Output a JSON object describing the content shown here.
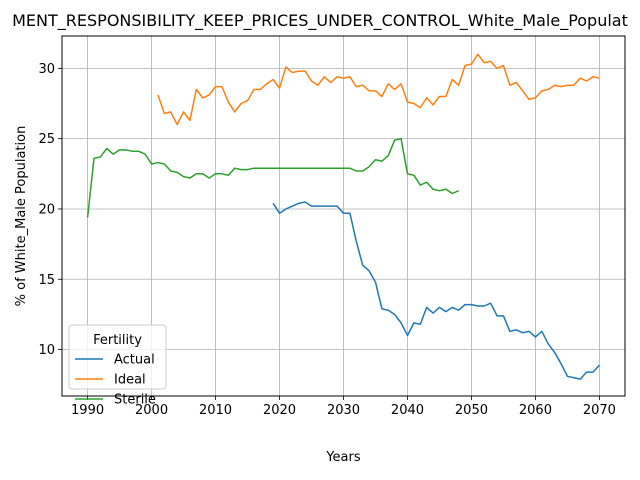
{
  "chart_data": {
    "type": "line",
    "title": "MENT_RESPONSIBILITY_KEEP_PRICES_UNDER_CONTROL_White_Male_Populat",
    "xlabel": "Years",
    "ylabel": "% of White_Male Population",
    "xlim": [
      1986,
      2074
    ],
    "ylim": [
      6.7,
      32.3
    ],
    "xticks": [
      1990,
      2000,
      2010,
      2020,
      2030,
      2040,
      2050,
      2060,
      2070
    ],
    "yticks": [
      10,
      15,
      20,
      25,
      30
    ],
    "grid": true,
    "legend": {
      "title": "Fertility",
      "position": "lower-left"
    },
    "series": [
      {
        "name": "Actual",
        "color": "#1f77b4",
        "x": [
          2019,
          2020,
          2021,
          2022,
          2023,
          2024,
          2025,
          2026,
          2027,
          2028,
          2029,
          2030,
          2031,
          2032,
          2033,
          2034,
          2035,
          2036,
          2037,
          2038,
          2039,
          2040,
          2041,
          2042,
          2043,
          2044,
          2045,
          2046,
          2047,
          2048,
          2049,
          2050,
          2051,
          2052,
          2053,
          2054,
          2055,
          2056,
          2057,
          2058,
          2059,
          2060,
          2061,
          2062,
          2063,
          2064,
          2065,
          2066,
          2067,
          2068,
          2069,
          2070
        ],
        "values": [
          20.4,
          19.7,
          20.0,
          20.2,
          20.4,
          20.5,
          20.2,
          20.2,
          20.2,
          20.2,
          20.2,
          19.7,
          19.7,
          17.7,
          16.0,
          15.6,
          14.8,
          12.9,
          12.8,
          12.5,
          11.9,
          11.0,
          11.9,
          11.8,
          13.0,
          12.6,
          13.0,
          12.7,
          13.0,
          12.8,
          13.2,
          13.2,
          13.1,
          13.1,
          13.3,
          12.4,
          12.4,
          11.3,
          11.4,
          11.2,
          11.3,
          10.9,
          11.3,
          10.4,
          9.8,
          9.0,
          8.1,
          8.0,
          7.9,
          8.4,
          8.4,
          8.9
        ]
      },
      {
        "name": "Ideal",
        "color": "#ff7f0e",
        "x": [
          2001,
          2002,
          2003,
          2004,
          2005,
          2006,
          2007,
          2008,
          2009,
          2010,
          2011,
          2012,
          2013,
          2014,
          2015,
          2016,
          2017,
          2018,
          2019,
          2020,
          2021,
          2022,
          2023,
          2024,
          2025,
          2026,
          2027,
          2028,
          2029,
          2030,
          2031,
          2032,
          2033,
          2034,
          2035,
          2036,
          2037,
          2038,
          2039,
          2040,
          2041,
          2042,
          2043,
          2044,
          2045,
          2046,
          2047,
          2048,
          2049,
          2050,
          2051,
          2052,
          2053,
          2054,
          2055,
          2056,
          2057,
          2058,
          2059,
          2060,
          2061,
          2062,
          2063,
          2064,
          2065,
          2066,
          2067,
          2068,
          2069,
          2070
        ],
        "values": [
          28.1,
          26.8,
          26.9,
          26.0,
          26.9,
          26.3,
          28.5,
          27.9,
          28.1,
          28.7,
          28.7,
          27.6,
          26.9,
          27.5,
          27.7,
          28.5,
          28.5,
          28.9,
          29.2,
          28.6,
          30.1,
          29.7,
          29.8,
          29.8,
          29.1,
          28.8,
          29.4,
          29.0,
          29.4,
          29.3,
          29.4,
          28.7,
          28.8,
          28.4,
          28.4,
          28.0,
          28.9,
          28.5,
          28.9,
          27.6,
          27.5,
          27.2,
          27.9,
          27.4,
          28.0,
          28.0,
          29.2,
          28.8,
          30.2,
          30.3,
          31.0,
          30.4,
          30.5,
          30.0,
          30.2,
          28.8,
          29.0,
          28.4,
          27.8,
          27.9,
          28.4,
          28.5,
          28.8,
          28.7,
          28.8,
          28.8,
          29.3,
          29.1,
          29.4,
          29.3
        ]
      },
      {
        "name": "Sterile",
        "color": "#2ca02c",
        "x": [
          1990,
          1991,
          1992,
          1993,
          1994,
          1995,
          1996,
          1997,
          1998,
          1999,
          2000,
          2001,
          2002,
          2003,
          2004,
          2005,
          2006,
          2007,
          2008,
          2009,
          2010,
          2011,
          2012,
          2013,
          2014,
          2015,
          2016,
          2017,
          2018,
          2019,
          2020,
          2021,
          2022,
          2023,
          2024,
          2025,
          2026,
          2027,
          2028,
          2029,
          2030,
          2031,
          2032,
          2033,
          2034,
          2035,
          2036,
          2037,
          2038,
          2039,
          2040,
          2041,
          2042,
          2043,
          2044,
          2045,
          2046,
          2047,
          2048
        ],
        "values": [
          19.4,
          23.6,
          23.7,
          24.3,
          23.9,
          24.2,
          24.2,
          24.1,
          24.1,
          23.9,
          23.2,
          23.3,
          23.2,
          22.7,
          22.6,
          22.3,
          22.2,
          22.5,
          22.5,
          22.2,
          22.5,
          22.5,
          22.4,
          22.9,
          22.8,
          22.8,
          22.9,
          22.9,
          22.9,
          22.9,
          22.9,
          22.9,
          22.9,
          22.9,
          22.9,
          22.9,
          22.9,
          22.9,
          22.9,
          22.9,
          22.9,
          22.9,
          22.7,
          22.7,
          23.0,
          23.5,
          23.4,
          23.8,
          24.9,
          25.0,
          22.5,
          22.4,
          21.7,
          21.9,
          21.4,
          21.3,
          21.4,
          21.1,
          21.3
        ]
      }
    ]
  }
}
